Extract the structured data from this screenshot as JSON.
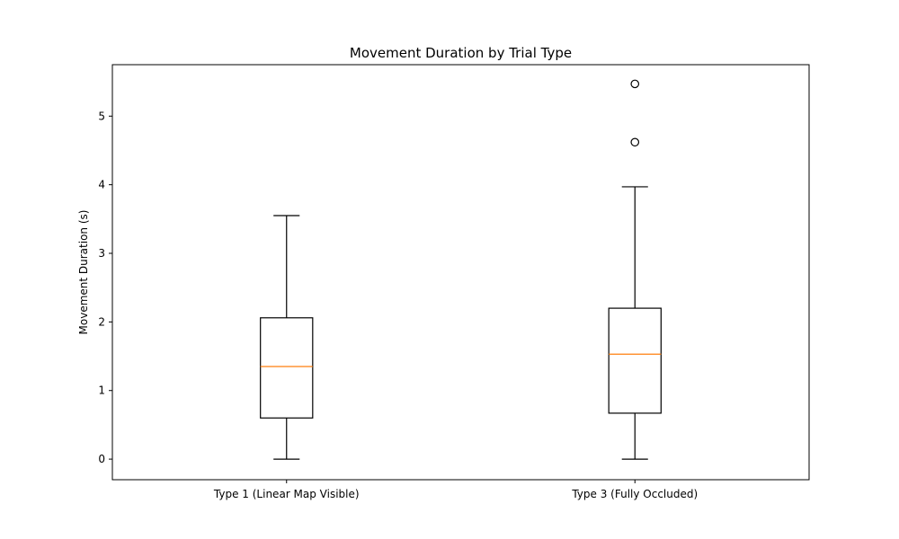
{
  "chart_data": {
    "type": "box",
    "title": "Movement Duration by Trial Type",
    "xlabel": "",
    "ylabel": "Movement Duration (s)",
    "ylim": [
      -0.3,
      5.75
    ],
    "yticks": [
      0,
      1,
      2,
      3,
      4,
      5
    ],
    "grid": false,
    "categories": [
      "Type 1 (Linear Map Visible)",
      "Type 3 (Fully Occluded)"
    ],
    "boxes": [
      {
        "whisker_low": 0.0,
        "q1": 0.6,
        "median": 1.35,
        "q3": 2.06,
        "whisker_high": 3.55,
        "outliers": []
      },
      {
        "whisker_low": 0.0,
        "q1": 0.67,
        "median": 1.53,
        "q3": 2.2,
        "whisker_high": 3.97,
        "outliers": [
          4.62,
          5.47
        ]
      }
    ],
    "colors": {
      "box": "#000000",
      "median": "#ff7f0e",
      "background": "#ffffff"
    }
  }
}
